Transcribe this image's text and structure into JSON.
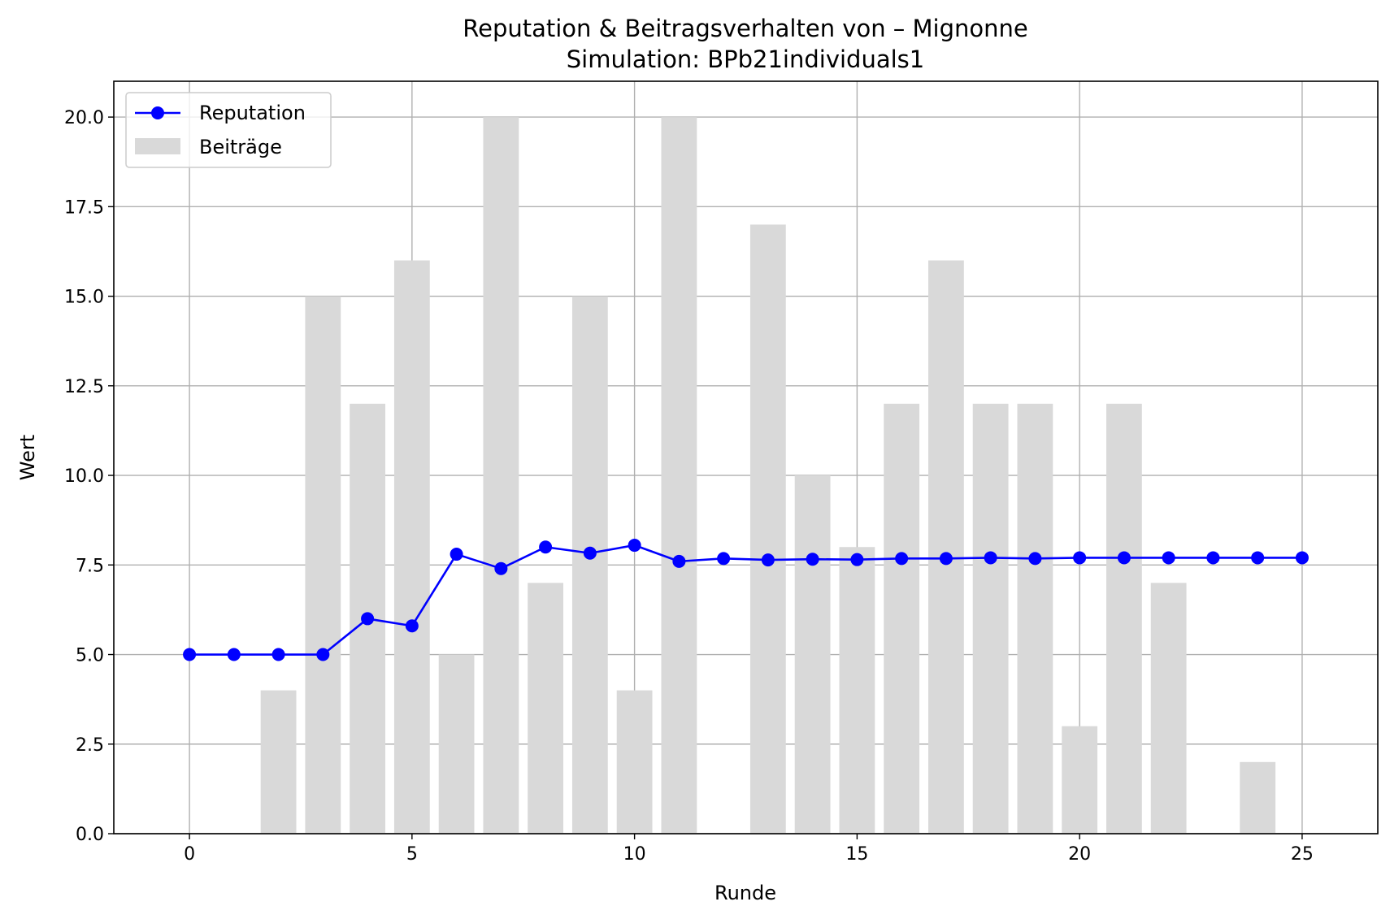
{
  "chart_data": {
    "type": "bar+line",
    "title": "Reputation & Beitragsverhalten von – Mignonne",
    "subtitle": "Simulation: BPb21individuals1",
    "xlabel": "Runde",
    "ylabel": "Wert",
    "xlim": [
      -1.7,
      26.7
    ],
    "ylim": [
      0,
      21
    ],
    "xticks": [
      0,
      5,
      10,
      15,
      20,
      25
    ],
    "yticks": [
      0.0,
      2.5,
      5.0,
      7.5,
      10.0,
      12.5,
      15.0,
      17.5,
      20.0
    ],
    "grid": true,
    "legend_position": "upper left",
    "x": [
      0,
      1,
      2,
      3,
      4,
      5,
      6,
      7,
      8,
      9,
      10,
      11,
      12,
      13,
      14,
      15,
      16,
      17,
      18,
      19,
      20,
      21,
      22,
      23,
      24,
      25
    ],
    "series": [
      {
        "name": "Reputation",
        "kind": "line",
        "marker": "circle",
        "color": "#0000ff",
        "values": [
          5.0,
          5.0,
          5.0,
          5.0,
          6.0,
          5.8,
          7.8,
          7.4,
          8.0,
          7.83,
          8.05,
          7.6,
          7.68,
          7.64,
          7.66,
          7.65,
          7.68,
          7.68,
          7.7,
          7.68,
          7.7,
          7.7,
          7.7,
          7.7,
          7.7,
          7.7
        ]
      },
      {
        "name": "Beiträge",
        "kind": "bar",
        "color": "#d9d9d9",
        "values": [
          0,
          0,
          4,
          15,
          12,
          16,
          5,
          20,
          7,
          15,
          4,
          20,
          0,
          17,
          10,
          8,
          12,
          16,
          12,
          12,
          3,
          12,
          7,
          0,
          2,
          0
        ]
      }
    ]
  }
}
